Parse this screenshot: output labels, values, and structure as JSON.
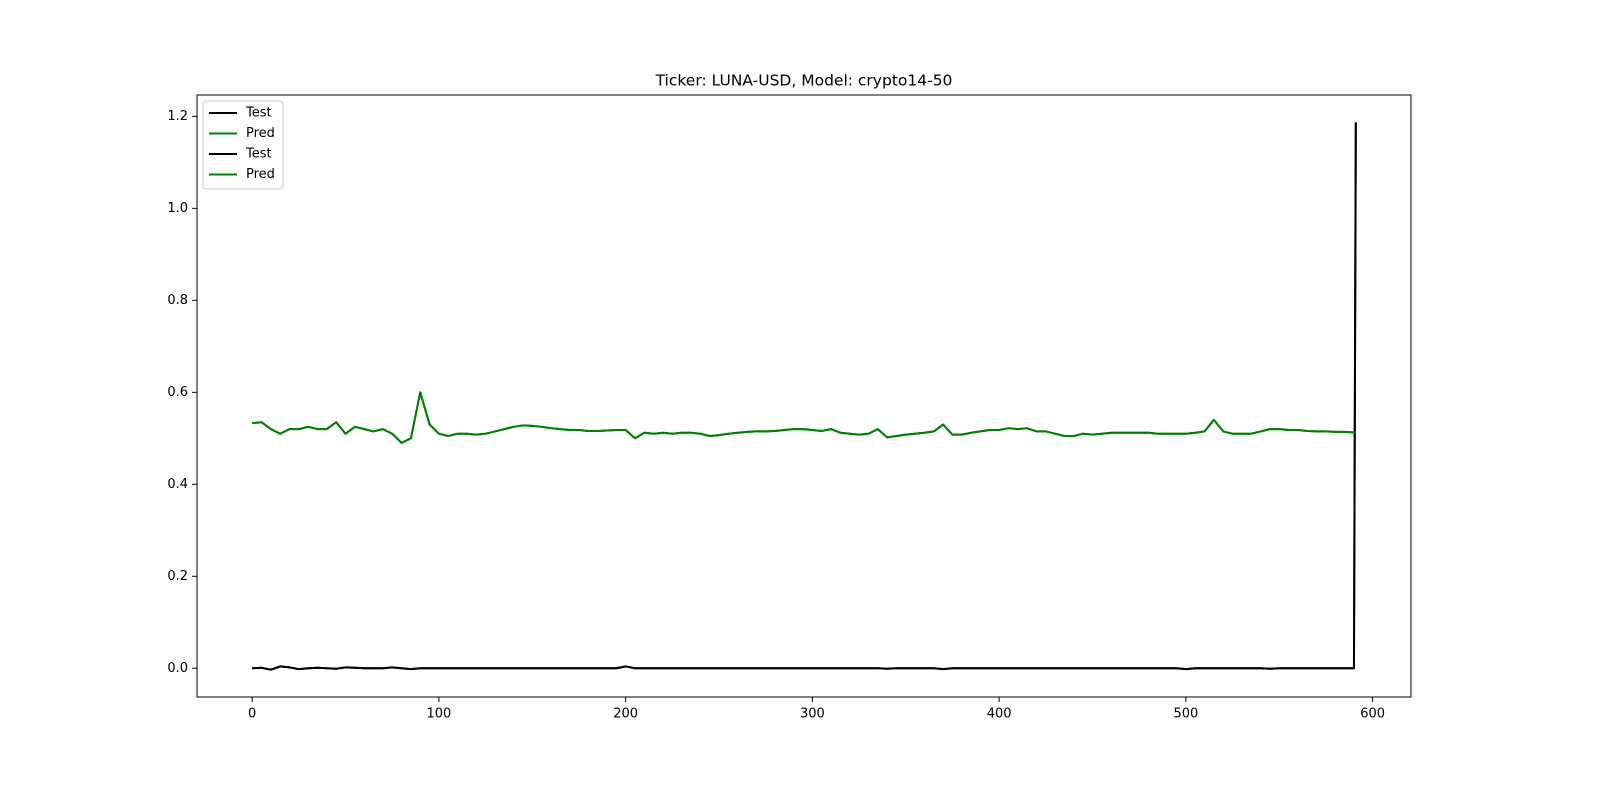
{
  "chart_data": {
    "type": "line",
    "title": "Ticker: LUNA-USD, Model: crypto14-50",
    "x": [
      0,
      5,
      10,
      15,
      20,
      25,
      30,
      35,
      40,
      45,
      50,
      55,
      60,
      65,
      70,
      75,
      80,
      85,
      90,
      95,
      100,
      105,
      110,
      115,
      120,
      125,
      130,
      135,
      140,
      145,
      150,
      155,
      160,
      165,
      170,
      175,
      180,
      185,
      190,
      195,
      200,
      205,
      210,
      215,
      220,
      225,
      230,
      235,
      240,
      245,
      250,
      255,
      260,
      265,
      270,
      275,
      280,
      285,
      290,
      295,
      300,
      305,
      310,
      315,
      320,
      325,
      330,
      335,
      340,
      345,
      350,
      355,
      360,
      365,
      370,
      375,
      380,
      385,
      390,
      395,
      400,
      405,
      410,
      415,
      420,
      425,
      430,
      435,
      440,
      445,
      450,
      455,
      460,
      465,
      470,
      475,
      480,
      485,
      490,
      495,
      500,
      505,
      510,
      515,
      520,
      525,
      530,
      535,
      540,
      545,
      550,
      555,
      560,
      565,
      570,
      575,
      580,
      585,
      590,
      591
    ],
    "series": [
      {
        "name": "Test",
        "color": "#000000",
        "values": [
          0,
          0.001,
          -0.003,
          0.004,
          0.002,
          -0.002,
          0,
          0.001,
          0,
          -0.001,
          0.002,
          0.001,
          0,
          0,
          0,
          0.002,
          0,
          -0.002,
          0,
          0,
          0,
          0,
          0,
          0,
          0,
          0,
          0,
          0,
          0,
          0,
          0,
          0,
          0,
          0,
          0,
          0,
          0,
          0,
          0,
          0,
          0.004,
          0,
          0,
          0,
          0,
          0,
          0,
          0,
          0,
          0,
          0,
          0,
          0,
          0,
          0,
          0,
          0,
          0,
          0,
          0,
          0,
          0,
          0,
          0,
          0,
          0,
          0,
          0,
          -0.001,
          0,
          0,
          0,
          0,
          0,
          -0.002,
          0,
          0,
          0,
          0,
          0,
          0,
          0,
          0,
          0,
          0,
          0,
          0,
          0,
          0,
          0,
          0,
          0,
          0,
          0,
          0,
          0,
          0,
          0,
          0,
          0,
          -0.002,
          0,
          0,
          0,
          0,
          0,
          0,
          0,
          0,
          -0.001,
          0,
          0,
          0,
          0,
          0,
          0,
          0,
          0,
          0,
          1.187
        ]
      },
      {
        "name": "Pred",
        "color": "#008000",
        "values": [
          0.533,
          0.535,
          0.52,
          0.51,
          0.52,
          0.52,
          0.525,
          0.52,
          0.52,
          0.535,
          0.51,
          0.525,
          0.52,
          0.515,
          0.52,
          0.51,
          0.49,
          0.5,
          0.6,
          0.53,
          0.51,
          0.505,
          0.51,
          0.51,
          0.508,
          0.51,
          0.515,
          0.52,
          0.525,
          0.528,
          0.527,
          0.525,
          0.522,
          0.52,
          0.518,
          0.518,
          0.516,
          0.516,
          0.517,
          0.518,
          0.518,
          0.5,
          0.512,
          0.51,
          0.512,
          0.51,
          0.512,
          0.512,
          0.51,
          0.505,
          0.507,
          0.51,
          0.512,
          0.514,
          0.515,
          0.515,
          0.516,
          0.518,
          0.52,
          0.52,
          0.518,
          0.516,
          0.52,
          0.512,
          0.51,
          0.508,
          0.51,
          0.52,
          0.502,
          0.505,
          0.508,
          0.51,
          0.512,
          0.515,
          0.53,
          0.508,
          0.508,
          0.512,
          0.515,
          0.518,
          0.518,
          0.522,
          0.52,
          0.522,
          0.515,
          0.515,
          0.51,
          0.505,
          0.505,
          0.51,
          0.508,
          0.51,
          0.512,
          0.512,
          0.512,
          0.512,
          0.512,
          0.51,
          0.51,
          0.51,
          0.51,
          0.512,
          0.515,
          0.54,
          0.515,
          0.51,
          0.51,
          0.51,
          0.515,
          0.52,
          0.52,
          0.518,
          0.518,
          0.516,
          0.515,
          0.515,
          0.514,
          0.514,
          0.513,
          0.513
        ]
      },
      {
        "name": "Test",
        "color": "#000000",
        "values": [
          0,
          0.001,
          -0.003,
          0.004,
          0.002,
          -0.002,
          0,
          0.001,
          0,
          -0.001,
          0.002,
          0.001,
          0,
          0,
          0,
          0.002,
          0,
          -0.002,
          0,
          0,
          0,
          0,
          0,
          0,
          0,
          0,
          0,
          0,
          0,
          0,
          0,
          0,
          0,
          0,
          0,
          0,
          0,
          0,
          0,
          0,
          0.004,
          0,
          0,
          0,
          0,
          0,
          0,
          0,
          0,
          0,
          0,
          0,
          0,
          0,
          0,
          0,
          0,
          0,
          0,
          0,
          0,
          0,
          0,
          0,
          0,
          0,
          0,
          0,
          -0.001,
          0,
          0,
          0,
          0,
          0,
          -0.002,
          0,
          0,
          0,
          0,
          0,
          0,
          0,
          0,
          0,
          0,
          0,
          0,
          0,
          0,
          0,
          0,
          0,
          0,
          0,
          0,
          0,
          0,
          0,
          0,
          0,
          -0.002,
          0,
          0,
          0,
          0,
          0,
          0,
          0,
          0,
          -0.001,
          0,
          0,
          0,
          0,
          0,
          0,
          0,
          0,
          0,
          1.187
        ]
      },
      {
        "name": "Pred",
        "color": "#008000",
        "values": [
          0.533,
          0.535,
          0.52,
          0.51,
          0.52,
          0.52,
          0.525,
          0.52,
          0.52,
          0.535,
          0.51,
          0.525,
          0.52,
          0.515,
          0.52,
          0.51,
          0.49,
          0.5,
          0.6,
          0.53,
          0.51,
          0.505,
          0.51,
          0.51,
          0.508,
          0.51,
          0.515,
          0.52,
          0.525,
          0.528,
          0.527,
          0.525,
          0.522,
          0.52,
          0.518,
          0.518,
          0.516,
          0.516,
          0.517,
          0.518,
          0.518,
          0.5,
          0.512,
          0.51,
          0.512,
          0.51,
          0.512,
          0.512,
          0.51,
          0.505,
          0.507,
          0.51,
          0.512,
          0.514,
          0.515,
          0.515,
          0.516,
          0.518,
          0.52,
          0.52,
          0.518,
          0.516,
          0.52,
          0.512,
          0.51,
          0.508,
          0.51,
          0.52,
          0.502,
          0.505,
          0.508,
          0.51,
          0.512,
          0.515,
          0.53,
          0.508,
          0.508,
          0.512,
          0.515,
          0.518,
          0.518,
          0.522,
          0.52,
          0.522,
          0.515,
          0.515,
          0.51,
          0.505,
          0.505,
          0.51,
          0.508,
          0.51,
          0.512,
          0.512,
          0.512,
          0.512,
          0.512,
          0.51,
          0.51,
          0.51,
          0.51,
          0.512,
          0.515,
          0.54,
          0.515,
          0.51,
          0.51,
          0.51,
          0.515,
          0.52,
          0.52,
          0.518,
          0.518,
          0.516,
          0.515,
          0.515,
          0.514,
          0.514,
          0.513,
          0.513
        ]
      }
    ],
    "xlim": [
      -29.55,
      620.55
    ],
    "xticks": [
      0,
      100,
      200,
      300,
      400,
      500,
      600
    ],
    "ylim": [
      -0.0625,
      1.2465
    ],
    "yticks": [
      {
        "value": 0,
        "label": "0.0"
      },
      0.2,
      0.4,
      0.6,
      0.8,
      {
        "value": 1,
        "label": "1.0"
      },
      1.2
    ],
    "grid": false,
    "legend": "upper left"
  }
}
